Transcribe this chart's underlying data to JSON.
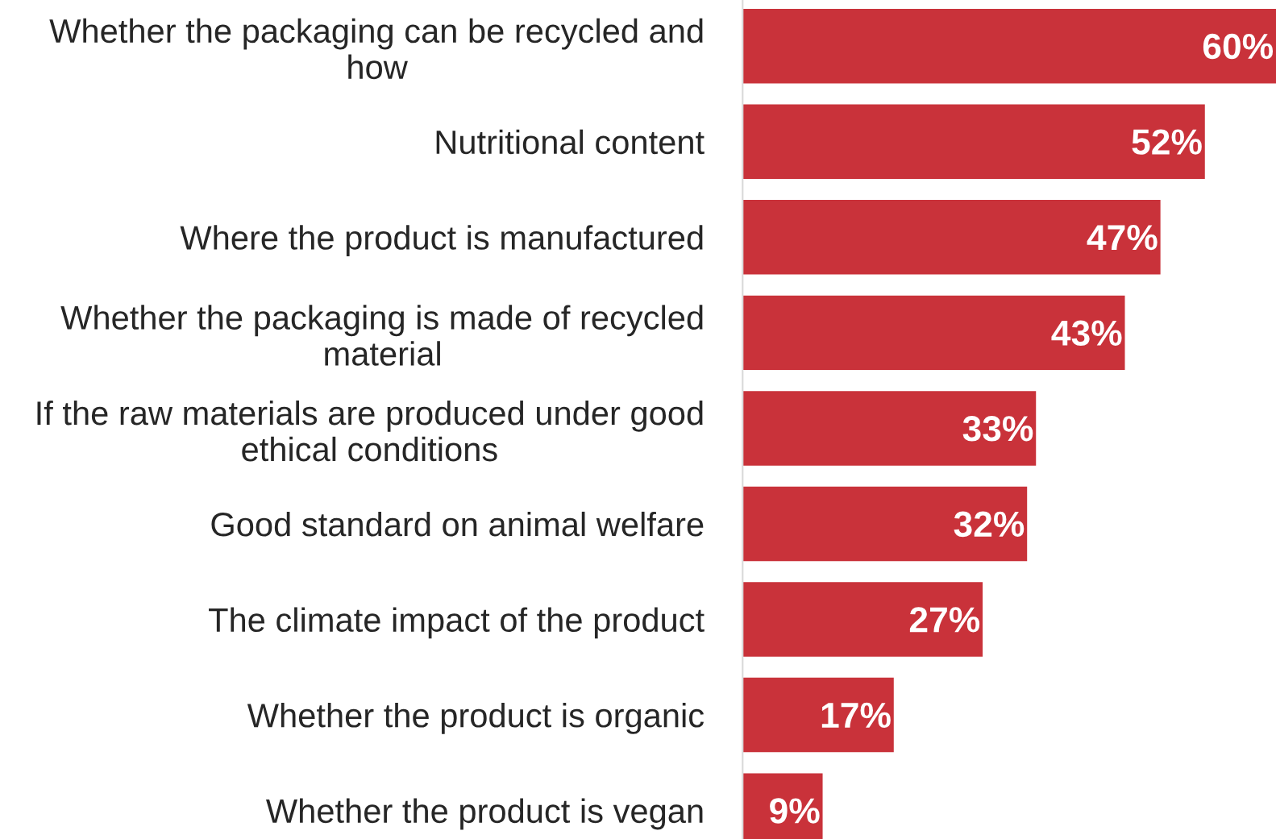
{
  "chart_data": {
    "type": "bar",
    "orientation": "horizontal",
    "categories": [
      "Whether the packaging can be recycled and how",
      "Nutritional content",
      "Where the product is manufactured",
      "Whether the packaging is made of recycled material",
      "If the raw materials are produced under good ethical conditions",
      "Good standard on animal welfare",
      "The climate impact of the product",
      "Whether the product is organic",
      "Whether the product is vegan"
    ],
    "values": [
      60,
      52,
      47,
      43,
      33,
      32,
      27,
      17,
      9
    ],
    "value_labels": [
      "60%",
      "52%",
      "47%",
      "43%",
      "33%",
      "32%",
      "27%",
      "17%",
      "9%"
    ],
    "color": "#c9323a",
    "xlim": [
      0,
      60
    ],
    "tick_labels": "y"
  }
}
